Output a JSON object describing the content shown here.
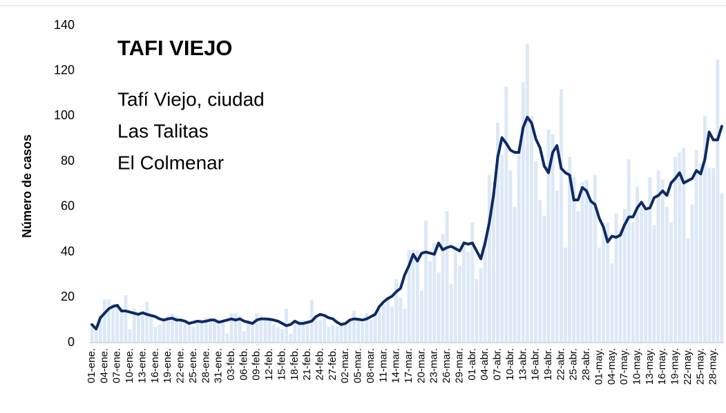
{
  "chart_data": {
    "type": "bar-line",
    "title": "TAFI VIEJO",
    "annotations": [
      "Tafí Viejo, ciudad",
      "Las Talitas",
      "El Colmenar"
    ],
    "ylabel": "Número de casos",
    "ylim": [
      0,
      140
    ],
    "yticks": [
      0,
      20,
      40,
      60,
      80,
      100,
      120,
      140
    ],
    "categories": [
      "01-ene.",
      null,
      null,
      "04-ene.",
      null,
      null,
      "07-ene.",
      null,
      null,
      "10-ene.",
      null,
      null,
      "13-ene.",
      null,
      null,
      "16-ene.",
      null,
      null,
      "19-ene.",
      null,
      null,
      "22-ene.",
      null,
      null,
      "25-ene.",
      null,
      null,
      "28-ene.",
      null,
      null,
      "31-ene.",
      null,
      null,
      "03-feb.",
      null,
      null,
      "06-feb.",
      null,
      null,
      "09-feb.",
      null,
      null,
      "12-feb.",
      null,
      null,
      "15-feb.",
      null,
      null,
      "18-feb.",
      null,
      null,
      "21-feb.",
      null,
      null,
      "24-feb.",
      null,
      null,
      "27-feb.",
      null,
      null,
      "02-mar.",
      null,
      null,
      "05-mar.",
      null,
      null,
      "08-mar.",
      null,
      null,
      "11-mar.",
      null,
      null,
      "14-mar.",
      null,
      null,
      "17-mar.",
      null,
      null,
      "20-mar.",
      null,
      null,
      "23-mar.",
      null,
      null,
      "26-mar.",
      null,
      null,
      "29-mar.",
      null,
      null,
      "01-abr.",
      null,
      null,
      "04-abr.",
      null,
      null,
      "07-abr.",
      null,
      null,
      "10-abr.",
      null,
      null,
      "13-abr.",
      null,
      null,
      "16-abr.",
      null,
      null,
      "19-abr.",
      null,
      null,
      "22-abr.",
      null,
      null,
      "25-abr.",
      null,
      null,
      "28-abr.",
      null,
      null,
      "01-may.",
      null,
      null,
      "04-may.",
      null,
      null,
      "07-may.",
      null,
      null,
      "10-may.",
      null,
      null,
      "13-may.",
      null,
      null,
      "16-may.",
      null,
      null,
      "19-may.",
      null,
      null,
      "22-may.",
      null,
      null,
      "25-may.",
      null,
      null,
      "28-may.",
      null,
      null
    ],
    "series": [
      {
        "type": "bar",
        "color": "#dce8f5",
        "values": [
          7,
          5,
          12,
          19,
          19,
          17,
          17,
          14,
          21,
          6,
          15,
          12,
          13,
          18,
          12,
          7,
          8,
          10,
          12,
          13,
          12,
          10,
          9,
          8,
          7,
          10,
          9,
          11,
          11,
          10,
          8,
          10,
          4,
          13,
          13,
          12,
          5,
          10,
          9,
          13,
          12,
          11,
          10,
          8,
          7,
          6,
          15,
          4,
          9,
          10,
          10,
          9,
          19,
          12,
          10,
          11,
          7,
          8,
          7,
          9,
          9,
          10,
          14,
          11,
          9,
          13,
          10,
          13,
          15,
          17,
          20,
          16,
          28,
          20,
          15,
          41,
          41,
          41,
          23,
          54,
          36,
          44,
          31,
          48,
          58,
          26,
          43,
          34,
          45,
          40,
          53,
          28,
          33,
          45,
          74,
          66,
          97,
          83,
          113,
          76,
          60,
          86,
          115,
          132,
          100,
          80,
          63,
          56,
          94,
          92,
          67,
          112,
          42,
          82,
          73,
          58,
          71,
          72,
          63,
          74,
          42,
          53,
          53,
          35,
          57,
          50,
          59,
          81,
          53,
          69,
          60,
          58,
          73,
          52,
          76,
          72,
          60,
          53,
          82,
          84,
          86,
          46,
          61,
          85,
          79,
          100,
          77,
          77,
          125,
          66
        ]
      },
      {
        "type": "line",
        "color": "#0d2a66",
        "values": [
          8,
          6,
          11,
          13,
          15,
          16,
          16.5,
          14,
          14,
          13.5,
          13,
          12.5,
          13.2,
          12.5,
          12,
          11.5,
          10.5,
          10,
          10.5,
          10.8,
          10,
          10,
          9.5,
          8.5,
          9,
          9.5,
          9.2,
          9.5,
          10,
          10,
          9,
          9.5,
          10,
          10.5,
          10,
          10.5,
          9.5,
          9,
          8.5,
          10,
          10.5,
          10.5,
          10.3,
          10,
          9.5,
          8.5,
          7.5,
          8,
          9.5,
          8.5,
          8.5,
          9,
          9.5,
          11.5,
          12.5,
          12,
          11,
          10.5,
          9,
          8,
          8.5,
          10,
          10.5,
          10.3,
          10,
          10.5,
          11.5,
          12.5,
          16,
          18,
          19.5,
          20.5,
          22.5,
          24,
          30,
          34,
          39,
          36,
          39.5,
          40,
          39.5,
          39,
          44,
          41,
          42,
          42.5,
          41.5,
          40.5,
          44,
          43.5,
          44,
          40.5,
          37,
          44,
          53,
          65,
          82,
          90.5,
          88,
          85,
          84,
          84,
          95,
          99.5,
          97,
          90,
          86,
          78,
          75,
          84,
          87,
          77,
          75,
          74,
          63,
          63,
          68.5,
          67,
          62.5,
          61,
          55,
          51,
          44.5,
          47,
          46.5,
          47.5,
          52,
          55.5,
          55.5,
          59.5,
          62,
          59,
          59.5,
          64,
          65,
          67,
          65,
          70.5,
          72.5,
          75,
          70.5,
          71.5,
          72.5,
          76,
          74.5,
          81,
          93,
          89.5,
          89.5,
          95.5
        ]
      }
    ]
  }
}
